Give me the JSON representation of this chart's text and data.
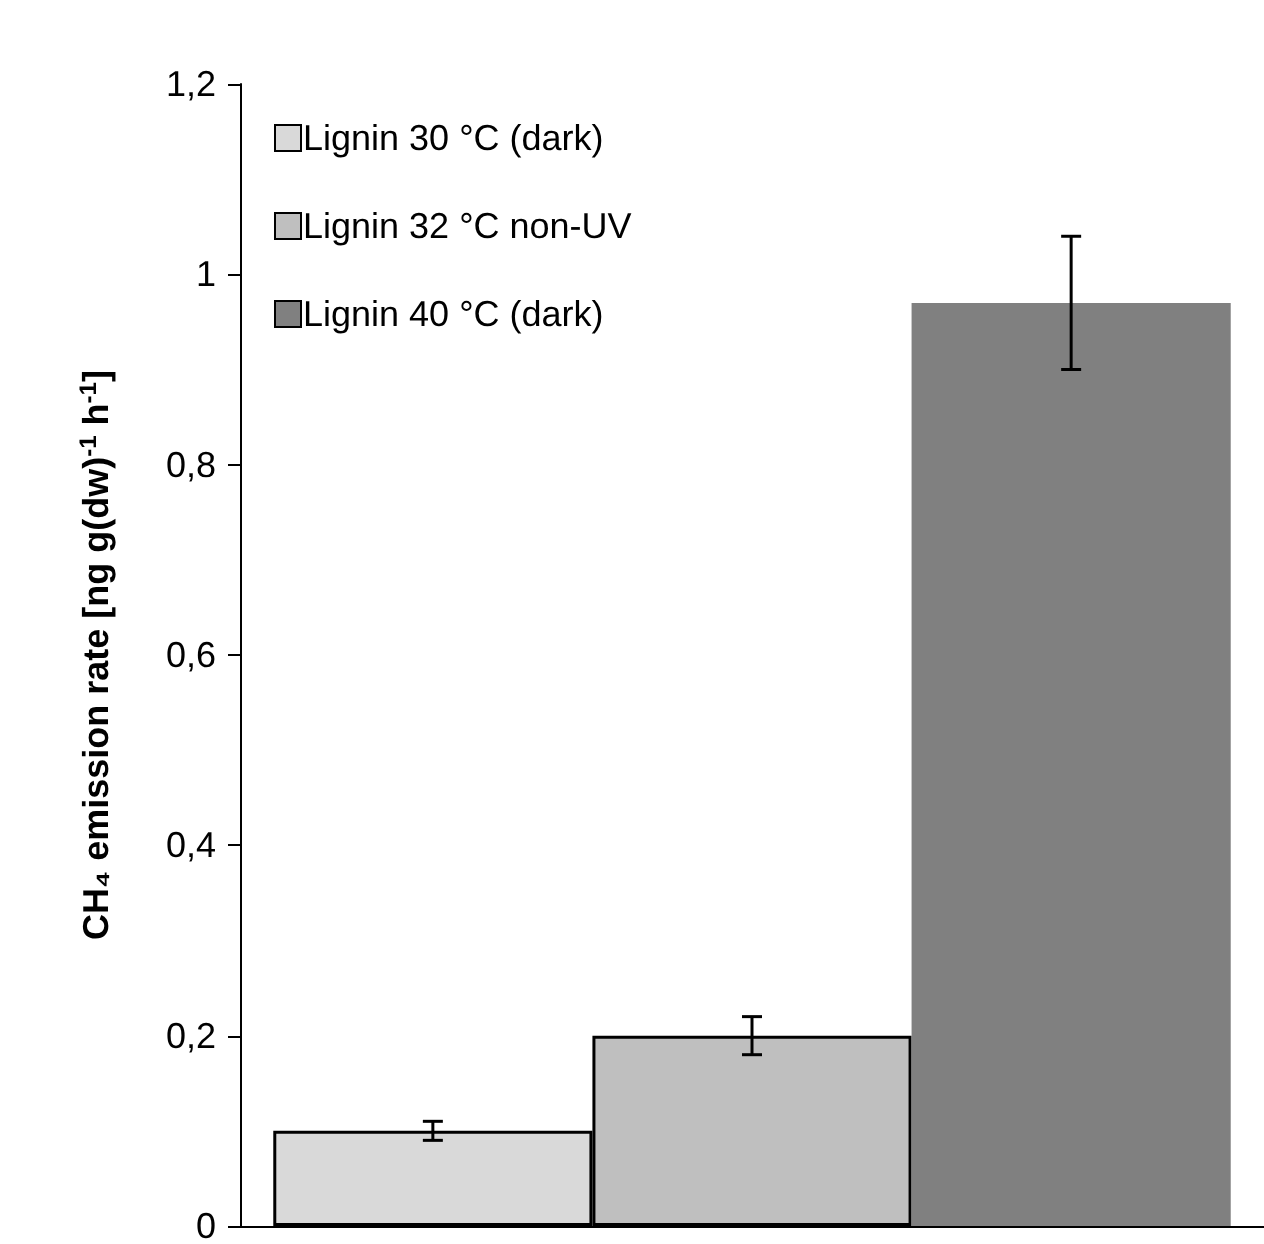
{
  "chart_data": {
    "type": "bar",
    "ylabel": "CH₄ emission rate [ng g(dw)$^{-1}$ h$^{-1}$]",
    "categories": [
      null
    ],
    "series": [
      {
        "name": "Lignin 30 °C (dark)",
        "color": "#d9d9d9",
        "values": [
          0.1
        ],
        "errors": [
          0.01
        ]
      },
      {
        "name": "Lignin 32 °C non-UV",
        "color": "#bfbfbf",
        "values": [
          0.2
        ],
        "errors": [
          0.02
        ]
      },
      {
        "name": "Lignin 40 °C (dark)",
        "color": "#808080",
        "values": [
          0.97
        ],
        "errors": [
          0.07
        ]
      }
    ],
    "ylim": [
      0,
      1.2
    ],
    "yticks": [
      0,
      {
        "value": 0.2,
        "label": "0,2"
      },
      {
        "value": 0.4,
        "label": "0,4"
      },
      {
        "value": 0.6,
        "label": "0,6"
      },
      {
        "value": 0.8,
        "label": "0,8"
      },
      1,
      {
        "value": 1.2,
        "label": "1,2"
      }
    ],
    "grid": false,
    "legend": "top left"
  }
}
